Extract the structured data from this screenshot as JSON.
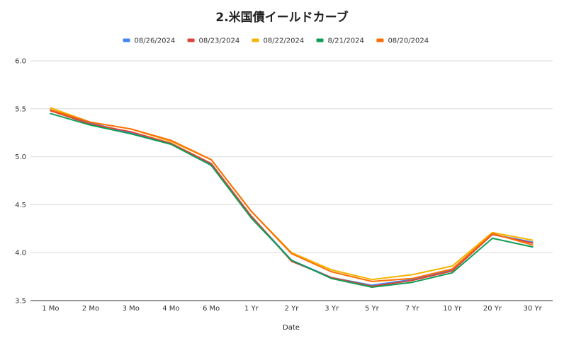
{
  "chart_data": {
    "type": "line",
    "title": "2.米国債イールドカーブ",
    "xlabel": "Date",
    "ylabel": "",
    "ylim": [
      3.5,
      6.0
    ],
    "yticks": [
      "6.0",
      "5.5",
      "5.0",
      "4.5",
      "4.0",
      "3.5"
    ],
    "grid": true,
    "legend_position": "top",
    "categories": [
      "1 Mo",
      "2 Mo",
      "3 Mo",
      "4 Mo",
      "6 Mo",
      "1 Yr",
      "2 Yr",
      "3 Yr",
      "5 Yr",
      "7 Yr",
      "10 Yr",
      "20 Yr",
      "30 Yr"
    ],
    "series": [
      {
        "name": "08/26/2024",
        "color": "#4285f4",
        "values": [
          5.49,
          5.35,
          5.25,
          5.14,
          4.92,
          4.38,
          3.92,
          3.74,
          3.66,
          3.72,
          3.82,
          4.19,
          4.11
        ]
      },
      {
        "name": "08/23/2024",
        "color": "#db4437",
        "values": [
          5.48,
          5.34,
          5.26,
          5.14,
          4.93,
          4.38,
          3.91,
          3.74,
          3.65,
          3.71,
          3.81,
          4.19,
          4.1
        ]
      },
      {
        "name": "08/22/2024",
        "color": "#f4b400",
        "values": [
          5.51,
          5.36,
          5.29,
          5.16,
          4.97,
          4.43,
          4.0,
          3.82,
          3.72,
          3.77,
          3.86,
          4.21,
          4.13
        ]
      },
      {
        "name": "8/21/2024",
        "color": "#0f9d58",
        "values": [
          5.45,
          5.33,
          5.24,
          5.13,
          4.91,
          4.36,
          3.92,
          3.73,
          3.64,
          3.69,
          3.79,
          4.15,
          4.06
        ]
      },
      {
        "name": "08/20/2024",
        "color": "#ff6d01",
        "values": [
          5.49,
          5.36,
          5.29,
          5.17,
          4.97,
          4.43,
          3.99,
          3.8,
          3.7,
          3.73,
          3.83,
          4.2,
          4.08
        ]
      }
    ]
  }
}
